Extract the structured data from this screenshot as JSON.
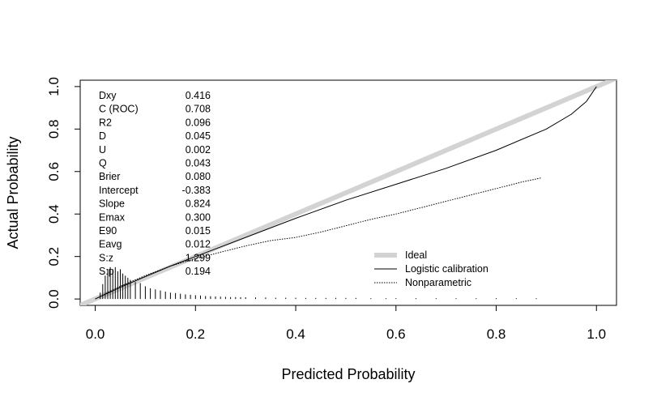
{
  "chart_data": {
    "type": "line",
    "xlabel": "Predicted Probability",
    "ylabel": "Actual Probability",
    "xlim": [
      -0.03,
      1.04
    ],
    "ylim": [
      -0.03,
      1.03
    ],
    "x_ticks": [
      "0.0",
      "0.2",
      "0.4",
      "0.6",
      "0.8",
      "1.0"
    ],
    "y_ticks": [
      "0.0",
      "0.2",
      "0.4",
      "0.6",
      "0.8",
      "1.0"
    ],
    "x_tick_values": [
      0,
      0.2,
      0.4,
      0.6,
      0.8,
      1.0
    ],
    "y_tick_values": [
      0,
      0.2,
      0.4,
      0.6,
      0.8,
      1.0
    ],
    "legend_position": "bottom-right",
    "stats": [
      {
        "name": "Dxy",
        "value": "0.416"
      },
      {
        "name": "C (ROC)",
        "value": "0.708"
      },
      {
        "name": "R2",
        "value": "0.096"
      },
      {
        "name": "D",
        "value": "0.045"
      },
      {
        "name": "U",
        "value": "0.002"
      },
      {
        "name": "Q",
        "value": "0.043"
      },
      {
        "name": "Brier",
        "value": "0.080"
      },
      {
        "name": "Intercept",
        "value": "-0.383"
      },
      {
        "name": "Slope",
        "value": "0.824"
      },
      {
        "name": "Emax",
        "value": "0.300"
      },
      {
        "name": "E90",
        "value": "0.015"
      },
      {
        "name": "Eavg",
        "value": "0.012"
      },
      {
        "name": "S:z",
        "value": "1.299"
      },
      {
        "name": "S:p",
        "value": "0.194"
      }
    ],
    "series": [
      {
        "name": "Ideal",
        "style": "thick",
        "color": "#d3d3d3",
        "x": [
          -0.05,
          1.05
        ],
        "y": [
          -0.05,
          1.05
        ]
      },
      {
        "name": "Logistic calibration",
        "style": "solid",
        "color": "#000000",
        "x": [
          0.0,
          0.05,
          0.1,
          0.15,
          0.2,
          0.3,
          0.4,
          0.5,
          0.6,
          0.7,
          0.8,
          0.9,
          0.95,
          0.98,
          1.0
        ],
        "y": [
          0.0,
          0.055,
          0.105,
          0.155,
          0.2,
          0.29,
          0.38,
          0.465,
          0.54,
          0.615,
          0.7,
          0.8,
          0.87,
          0.93,
          1.0
        ]
      },
      {
        "name": "Nonparametric",
        "style": "dotted",
        "color": "#000000",
        "x": [
          0.0,
          0.05,
          0.1,
          0.15,
          0.2,
          0.25,
          0.3,
          0.35,
          0.4,
          0.45,
          0.5,
          0.55,
          0.6,
          0.65,
          0.7,
          0.75,
          0.8,
          0.85,
          0.89
        ],
        "y": [
          0.0,
          0.06,
          0.11,
          0.155,
          0.19,
          0.22,
          0.25,
          0.275,
          0.29,
          0.315,
          0.345,
          0.375,
          0.4,
          0.43,
          0.46,
          0.49,
          0.52,
          0.55,
          0.57
        ]
      }
    ],
    "rug": {
      "x": [
        0.01,
        0.015,
        0.02,
        0.025,
        0.03,
        0.035,
        0.04,
        0.045,
        0.05,
        0.055,
        0.06,
        0.065,
        0.07,
        0.08,
        0.09,
        0.1,
        0.11,
        0.12,
        0.13,
        0.14,
        0.15,
        0.16,
        0.17,
        0.18,
        0.19,
        0.2,
        0.21,
        0.22,
        0.23,
        0.24,
        0.25,
        0.26,
        0.27,
        0.28,
        0.29,
        0.3,
        0.32,
        0.34,
        0.36,
        0.38,
        0.4,
        0.42,
        0.44,
        0.46,
        0.48,
        0.5,
        0.52,
        0.55,
        0.58,
        0.6,
        0.64,
        0.68,
        0.72,
        0.76,
        0.8,
        0.84,
        0.88
      ],
      "height": [
        0.03,
        0.07,
        0.11,
        0.14,
        0.15,
        0.14,
        0.15,
        0.13,
        0.14,
        0.12,
        0.11,
        0.1,
        0.09,
        0.08,
        0.075,
        0.06,
        0.05,
        0.045,
        0.04,
        0.035,
        0.03,
        0.028,
        0.025,
        0.022,
        0.02,
        0.018,
        0.016,
        0.014,
        0.013,
        0.012,
        0.011,
        0.01,
        0.009,
        0.009,
        0.008,
        0.008,
        0.007,
        0.007,
        0.006,
        0.006,
        0.006,
        0.005,
        0.005,
        0.005,
        0.005,
        0.005,
        0.005,
        0.004,
        0.004,
        0.004,
        0.004,
        0.004,
        0.004,
        0.004,
        0.004,
        0.004,
        0.004
      ]
    }
  }
}
